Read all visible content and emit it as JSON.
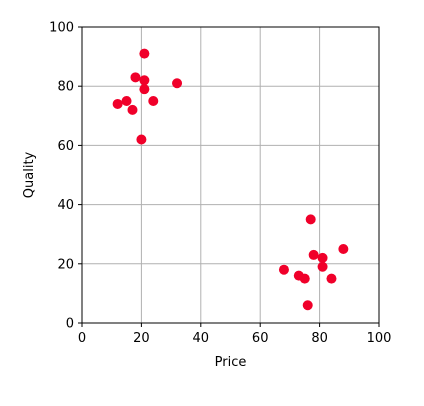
{
  "chart_data": {
    "type": "scatter",
    "title": "",
    "xlabel": "Price",
    "ylabel": "Quality",
    "xlim": [
      0,
      100
    ],
    "ylim": [
      0,
      100
    ],
    "xticks": [
      "0",
      "20",
      "40",
      "60",
      "80",
      "100"
    ],
    "yticks": [
      "0",
      "20",
      "40",
      "60",
      "80",
      "100"
    ],
    "grid": true,
    "legend": "none",
    "series": [
      {
        "color": "#f0002a",
        "points": [
          {
            "x": 21,
            "y": 91
          },
          {
            "x": 18,
            "y": 83
          },
          {
            "x": 21,
            "y": 82
          },
          {
            "x": 21,
            "y": 79
          },
          {
            "x": 32,
            "y": 81
          },
          {
            "x": 12,
            "y": 74
          },
          {
            "x": 15,
            "y": 75
          },
          {
            "x": 17,
            "y": 72
          },
          {
            "x": 24,
            "y": 75
          },
          {
            "x": 20,
            "y": 62
          },
          {
            "x": 77,
            "y": 35
          },
          {
            "x": 88,
            "y": 25
          },
          {
            "x": 78,
            "y": 23
          },
          {
            "x": 81,
            "y": 22
          },
          {
            "x": 81,
            "y": 19
          },
          {
            "x": 68,
            "y": 18
          },
          {
            "x": 73,
            "y": 16
          },
          {
            "x": 75,
            "y": 15
          },
          {
            "x": 84,
            "y": 15
          },
          {
            "x": 76,
            "y": 6
          }
        ]
      }
    ]
  }
}
